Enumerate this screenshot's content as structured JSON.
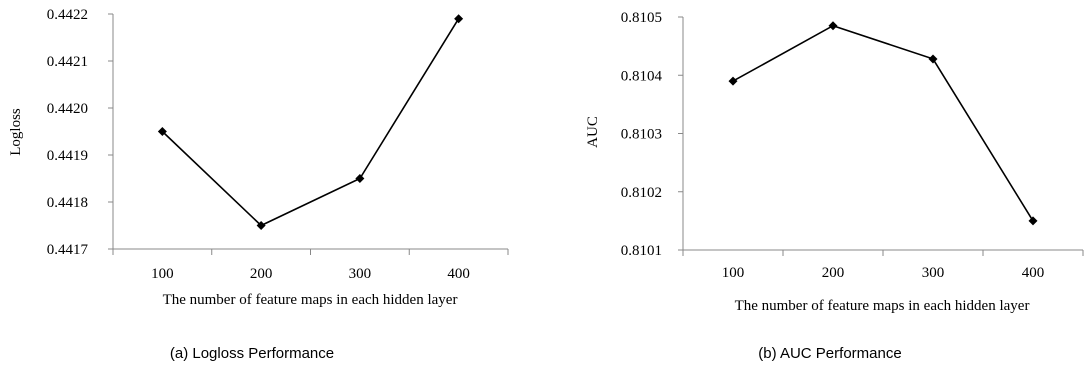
{
  "chart_data": [
    {
      "type": "line",
      "caption": "(a) Logloss Performance",
      "xlabel": "The number of feature maps in each hidden layer",
      "ylabel": "Logloss",
      "categories": [
        "100",
        "200",
        "300",
        "400"
      ],
      "yticks": [
        "0.4417",
        "0.4418",
        "0.4419",
        "0.4420",
        "0.4421",
        "0.4422"
      ],
      "ylim": [
        0.4417,
        0.4422
      ],
      "grid": false,
      "series": [
        {
          "values": [
            0.44195,
            0.44175,
            0.44185,
            0.44219
          ],
          "color": "#000000"
        }
      ]
    },
    {
      "type": "line",
      "caption": "(b) AUC Performance",
      "xlabel": "The number of feature maps in each hidden layer",
      "ylabel": "AUC",
      "categories": [
        "100",
        "200",
        "300",
        "400"
      ],
      "yticks": [
        "0.8101",
        "0.8102",
        "0.8103",
        "0.8104",
        "0.8105"
      ],
      "ylim": [
        0.8101,
        0.8105
      ],
      "grid": false,
      "series": [
        {
          "values": [
            0.81039,
            0.810485,
            0.810428,
            0.81015
          ],
          "color": "#000000"
        }
      ]
    }
  ]
}
